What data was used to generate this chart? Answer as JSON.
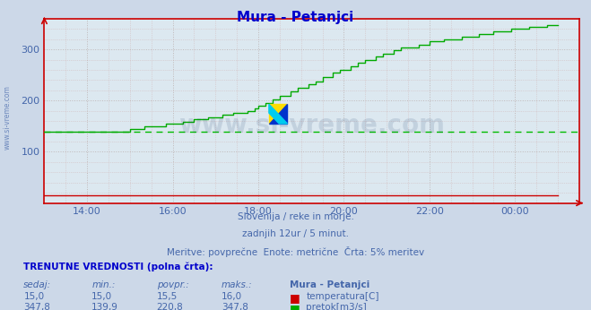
{
  "title": "Mura - Petanjci",
  "background_color": "#ccd8e8",
  "plot_bg_color": "#dce8f0",
  "title_color": "#0000cc",
  "axis_color": "#cc0000",
  "tick_color": "#4466aa",
  "subtitle_lines": [
    "Slovenija / reke in morje.",
    "zadnjih 12ur / 5 minut.",
    "Meritve: povprečne  Enote: metrične  Črta: 5% meritev"
  ],
  "subtitle_color": "#4466aa",
  "watermark_text": "www.si-vreme.com",
  "watermark_color": "#1a3a6a",
  "watermark_alpha": 0.13,
  "legend_title": "TRENUTNE VREDNOSTI (polna črta):",
  "legend_headers": [
    "sedaj:",
    "min.:",
    "povpr.:",
    "maks.:",
    "Mura - Petanjci"
  ],
  "temp_val_strs": [
    "15,0",
    "15,0",
    "15,5",
    "16,0"
  ],
  "flow_val_strs": [
    "347,8",
    "139,9",
    "220,8",
    "347,8"
  ],
  "temp_color": "#cc0000",
  "flow_color": "#00aa00",
  "temp_label": "temperatura[C]",
  "flow_label": "pretok[m3/s]",
  "left_label": "www.si-vreme.com",
  "left_label_color": "#4466aa",
  "dashed_line_value": 140,
  "dashed_line_color": "#00bb00",
  "ylim": [
    0,
    360
  ],
  "yticks": [
    100,
    200,
    300
  ],
  "xtick_labels": [
    "14:00",
    "16:00",
    "18:00",
    "20:00",
    "22:00",
    "00:00"
  ],
  "xtick_positions": [
    1,
    3,
    5,
    7,
    9,
    11
  ],
  "xlim": [
    0,
    12.5
  ]
}
